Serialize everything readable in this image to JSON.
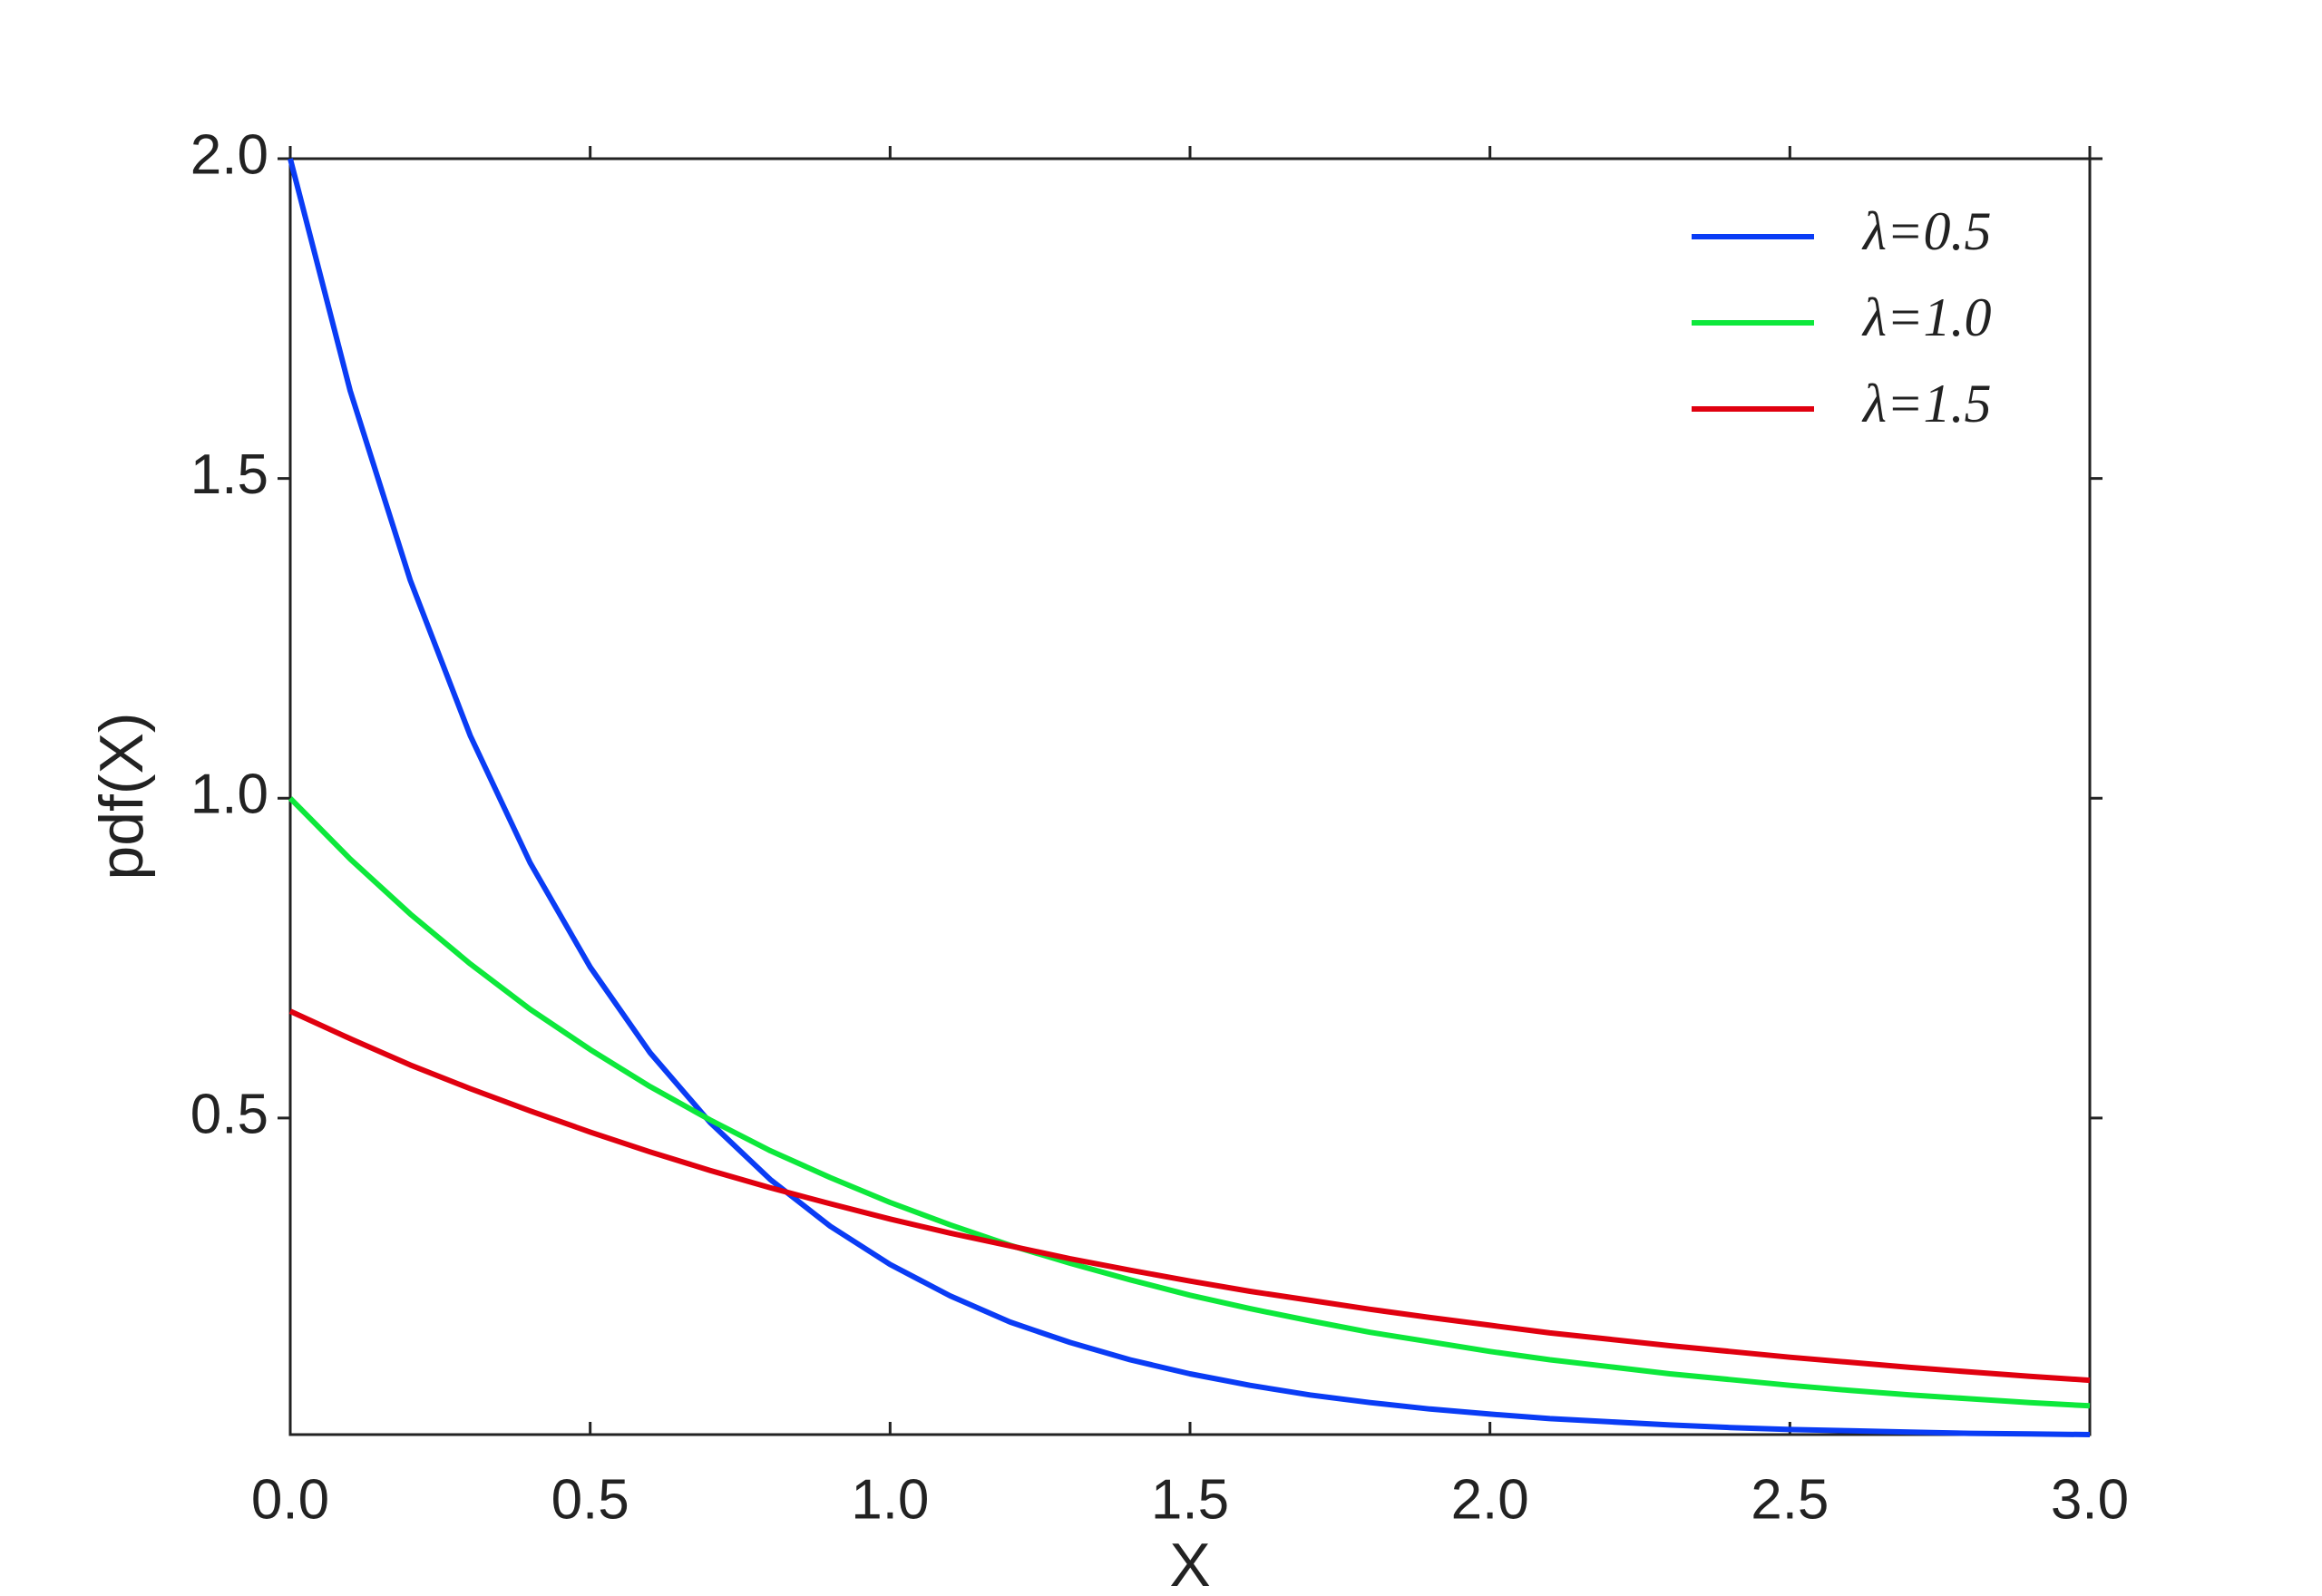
{
  "chart_data": {
    "type": "line",
    "x": [
      0,
      0.1,
      0.2,
      0.3,
      0.4,
      0.5,
      0.6,
      0.7,
      0.8,
      0.9,
      1.0,
      1.1,
      1.2,
      1.3,
      1.4,
      1.5,
      1.6,
      1.7,
      1.8,
      1.9,
      2.0,
      2.1,
      2.2,
      2.3,
      2.4,
      2.5,
      2.6,
      2.7,
      2.8,
      2.9,
      3.0
    ],
    "series": [
      {
        "name": "λ=0.5",
        "color": "#0a3cf5",
        "values": [
          2,
          1.637,
          1.341,
          1.098,
          0.899,
          0.736,
          0.602,
          0.493,
          0.404,
          0.331,
          0.271,
          0.222,
          0.181,
          0.149,
          0.122,
          0.1,
          0.082,
          0.067,
          0.055,
          0.045,
          0.037,
          0.03,
          0.025,
          0.02,
          0.016,
          0.013,
          0.011,
          0.009,
          0.007,
          0.006,
          0.005
        ]
      },
      {
        "name": "λ=1.0",
        "color": "#0de83b",
        "values": [
          1,
          0.905,
          0.819,
          0.741,
          0.67,
          0.607,
          0.549,
          0.497,
          0.449,
          0.407,
          0.368,
          0.333,
          0.301,
          0.273,
          0.247,
          0.223,
          0.202,
          0.183,
          0.165,
          0.15,
          0.135,
          0.122,
          0.111,
          0.1,
          0.091,
          0.082,
          0.074,
          0.067,
          0.061,
          0.055,
          0.05
        ]
      },
      {
        "name": "λ=1.5",
        "color": "#e0000f",
        "values": [
          0.667,
          0.624,
          0.583,
          0.546,
          0.511,
          0.478,
          0.447,
          0.418,
          0.391,
          0.366,
          0.342,
          0.32,
          0.3,
          0.28,
          0.262,
          0.245,
          0.229,
          0.215,
          0.201,
          0.188,
          0.176,
          0.164,
          0.154,
          0.144,
          0.135,
          0.126,
          0.118,
          0.11,
          0.103,
          0.096,
          0.09
        ]
      }
    ],
    "x_label": "X",
    "y_label": "pdf(X)",
    "xlim": [
      0,
      3
    ],
    "ylim": [
      0.005,
      2
    ],
    "xticks": [
      {
        "value": 0,
        "label": "0.0"
      },
      0.5,
      {
        "value": 1,
        "label": "1.0"
      },
      1.5,
      {
        "value": 2,
        "label": "2.0"
      },
      2.5,
      {
        "value": 3,
        "label": "3.0"
      }
    ],
    "yticks": [
      0.5,
      {
        "value": 1,
        "label": "1.0"
      },
      1.5,
      {
        "value": 2,
        "label": "2.0"
      }
    ],
    "legend": "upper right",
    "grid": false
  }
}
